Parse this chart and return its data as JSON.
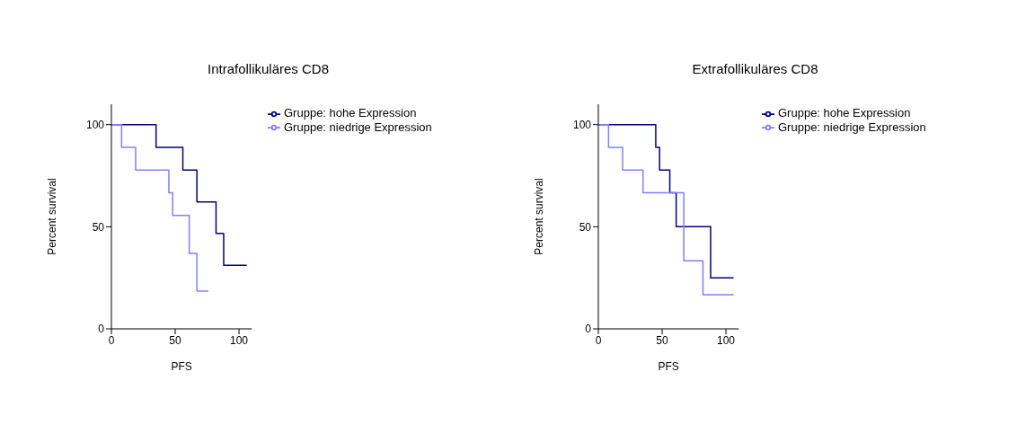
{
  "chart_data": [
    {
      "type": "step",
      "title": "Intrafollikuläres CD8",
      "xlabel": "PFS",
      "ylabel": "Percent survival",
      "xlim": [
        0,
        110
      ],
      "ylim": [
        0,
        110
      ],
      "xticks": [
        0,
        50,
        100
      ],
      "yticks": [
        0,
        50,
        100
      ],
      "legend": "top right",
      "series": [
        {
          "name": "Gruppe: hohe Expression",
          "color": "#000080",
          "x": [
            0,
            35,
            56,
            67,
            82,
            88,
            106
          ],
          "values": [
            100,
            88.9,
            77.8,
            62.2,
            46.7,
            31.1,
            31.1
          ]
        },
        {
          "name": "Gruppe: niedrige Expression",
          "color": "#8080ff",
          "x": [
            0,
            8,
            19,
            45,
            48,
            61,
            67,
            76
          ],
          "values": [
            100,
            88.9,
            77.8,
            66.7,
            55.6,
            37,
            18.5,
            18.5
          ]
        }
      ]
    },
    {
      "type": "step",
      "title": "Extrafollikuläres CD8",
      "xlabel": "PFS",
      "ylabel": "Percent survival",
      "xlim": [
        0,
        110
      ],
      "ylim": [
        0,
        110
      ],
      "xticks": [
        0,
        50,
        100
      ],
      "yticks": [
        0,
        50,
        100
      ],
      "legend": "top right",
      "series": [
        {
          "name": "Gruppe: hohe Expression",
          "color": "#000080",
          "x": [
            0,
            45,
            48,
            56,
            61,
            88,
            106
          ],
          "values": [
            100,
            88.9,
            77.8,
            66.7,
            50,
            25,
            25
          ]
        },
        {
          "name": "Gruppe: niedrige Expression",
          "color": "#8080ff",
          "x": [
            0,
            8,
            19,
            35,
            67,
            82,
            106
          ],
          "values": [
            100,
            88.9,
            77.8,
            66.7,
            33.3,
            16.7,
            16.7
          ]
        }
      ]
    }
  ]
}
